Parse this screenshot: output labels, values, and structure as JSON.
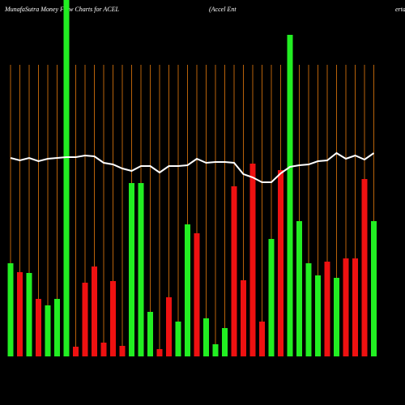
{
  "chart_data": {
    "type": "bar",
    "title": "MunafaSutra  Money Flow  Charts for ACEL",
    "subtitle": "(Accel Ent",
    "subtitle_tail": "erta",
    "background": "#000000",
    "grid_color": "#b8620a",
    "line_color": "#ffffff",
    "ylim": [
      0,
      440
    ],
    "values": [
      115,
      104,
      103,
      71,
      63,
      71,
      445,
      12,
      91,
      111,
      17,
      93,
      13,
      214,
      214,
      55,
      9,
      73,
      43,
      163,
      152,
      47,
      15,
      35,
      210,
      94,
      238,
      43,
      145,
      230,
      397,
      167,
      115,
      100,
      117,
      97,
      121,
      121,
      219,
      167
    ],
    "colors": [
      "#22ee22",
      "#ee1111",
      "#22ee22",
      "#ee1111",
      "#22ee22",
      "#22ee22",
      "#22ee22",
      "#ee1111",
      "#ee1111",
      "#ee1111",
      "#ee1111",
      "#ee1111",
      "#ee1111",
      "#22ee22",
      "#22ee22",
      "#22ee22",
      "#ee1111",
      "#ee1111",
      "#22ee22",
      "#22ee22",
      "#ee1111",
      "#22ee22",
      "#22ee22",
      "#22ee22",
      "#ee1111",
      "#ee1111",
      "#ee1111",
      "#ee1111",
      "#22ee22",
      "#ee1111",
      "#22ee22",
      "#22ee22",
      "#22ee22",
      "#22ee22",
      "#ee1111",
      "#22ee22",
      "#ee1111",
      "#ee1111",
      "#ee1111",
      "#22ee22"
    ],
    "line_values": [
      245,
      242,
      245,
      241,
      244,
      245,
      246,
      246,
      248,
      247,
      239,
      237,
      232,
      229,
      235,
      235,
      227,
      235,
      235,
      236,
      244,
      239,
      240,
      240,
      239,
      225,
      221,
      215,
      215,
      226,
      234,
      236,
      237,
      241,
      242,
      251,
      244,
      248,
      243,
      251
    ]
  }
}
